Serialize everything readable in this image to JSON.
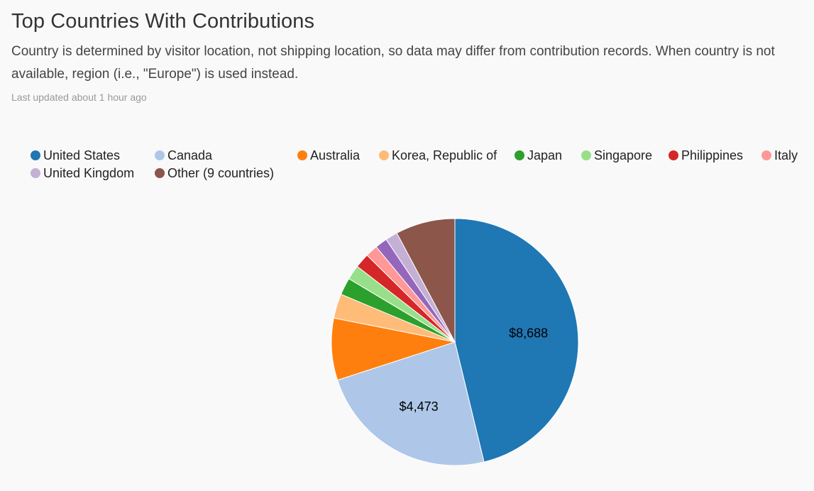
{
  "header": {
    "title": "Top Countries With Contributions",
    "subtitle": "Country is determined by visitor location, not shipping location, so data may differ from contribution records. When country is not available, region (i.e., \"Europe\") is used instead.",
    "updated": "Last updated about 1 hour ago"
  },
  "chart_data": {
    "type": "pie",
    "title": "Top Countries With Contributions",
    "legend_placement": "top",
    "slices": [
      {
        "label": "United States",
        "value": 8688,
        "display": "$8,688",
        "color": "#1f77b4"
      },
      {
        "label": "Canada",
        "value": 4473,
        "display": "$4,473",
        "color": "#aec7e8"
      },
      {
        "label": "Australia",
        "value": 1524,
        "color": "#ff7f0e"
      },
      {
        "label": "Korea, Republic of",
        "value": 603,
        "color": "#ffbb78"
      },
      {
        "label": "Japan",
        "value": 422,
        "color": "#2ca02c"
      },
      {
        "label": "Singapore",
        "value": 361,
        "color": "#98df8a"
      },
      {
        "label": "Philippines",
        "value": 361,
        "color": "#d62728"
      },
      {
        "label": "Italy",
        "value": 301,
        "color": "#ff9896"
      },
      {
        "label": "",
        "value": 301,
        "color": "#9467bd"
      },
      {
        "label": "United Kingdom",
        "value": 301,
        "color": "#c5b0d5"
      },
      {
        "label": "Other (9 countries)",
        "value": 1465,
        "color": "#8c564b"
      }
    ]
  }
}
